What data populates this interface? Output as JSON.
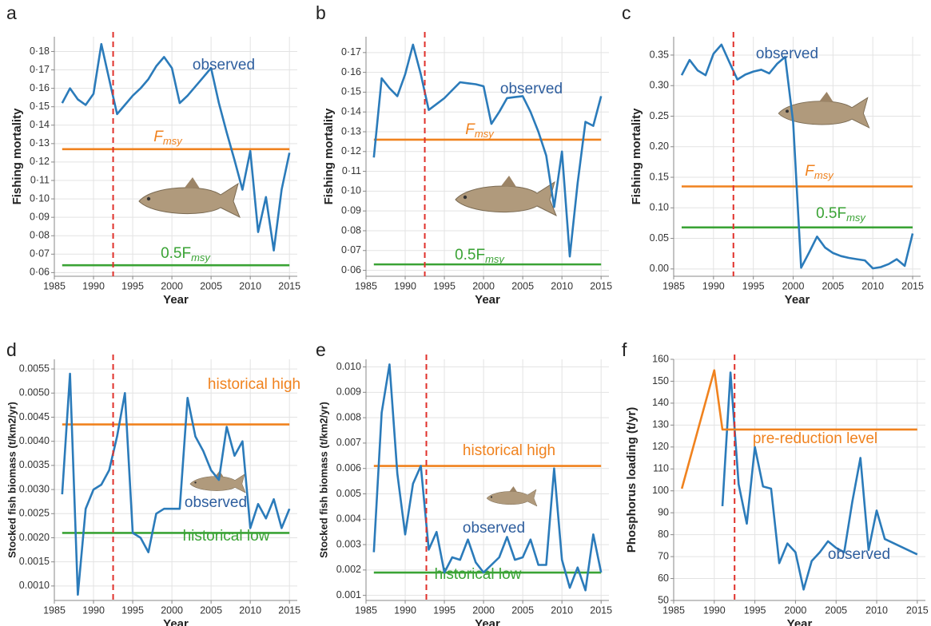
{
  "chart_data": [
    {
      "type": "line",
      "panel": "a",
      "xlabel": "Year",
      "ylabel": "Fishing mortality",
      "xlim": [
        1985,
        2016
      ],
      "xticks": [
        1985,
        1990,
        1995,
        2000,
        2005,
        2010,
        2015
      ],
      "ylim": [
        0.058,
        0.188
      ],
      "yticks": [
        {
          "value": 0.06,
          "label": "0·06"
        },
        {
          "value": 0.07,
          "label": "0·07"
        },
        {
          "value": 0.08,
          "label": "0·08"
        },
        {
          "value": 0.09,
          "label": "0·09"
        },
        {
          "value": 0.1,
          "label": "0·10"
        },
        {
          "value": 0.11,
          "label": "0·11"
        },
        {
          "value": 0.12,
          "label": "0·12"
        },
        {
          "value": 0.13,
          "label": "0·13"
        },
        {
          "value": 0.14,
          "label": "0·14"
        },
        {
          "value": 0.15,
          "label": "0·15"
        },
        {
          "value": 0.16,
          "label": "0·16"
        },
        {
          "value": 0.17,
          "label": "0·17"
        },
        {
          "value": 0.18,
          "label": "0·18"
        }
      ],
      "grid": true,
      "vline_x": 1992.5,
      "vline_color": "#e0302a",
      "series": [
        {
          "name": "observed",
          "color": "#2b7bba",
          "x": [
            1986,
            1987,
            1988,
            1989,
            1990,
            1991,
            1992,
            1993,
            1994,
            1995,
            1996,
            1997,
            1998,
            1999,
            2000,
            2001,
            2002,
            2003,
            2004,
            2005,
            2006,
            2007,
            2008,
            2009,
            2010,
            2011,
            2012,
            2013,
            2014,
            2015
          ],
          "values": [
            0.152,
            0.16,
            0.154,
            0.151,
            0.157,
            0.184,
            0.165,
            0.146,
            0.151,
            0.156,
            0.16,
            0.165,
            0.172,
            0.177,
            0.171,
            0.152,
            0.156,
            0.161,
            0.166,
            0.171,
            0.152,
            0.136,
            0.121,
            0.105,
            0.126,
            0.082,
            0.101,
            0.072,
            0.105,
            0.125
          ]
        }
      ],
      "hlines": [
        {
          "label": "F",
          "subscript": "msy",
          "value": 0.127,
          "color": "#f0821e"
        },
        {
          "label": "0.5F",
          "subscript": "msy",
          "value": 0.064,
          "color": "#3aa335"
        }
      ]
    },
    {
      "type": "line",
      "panel": "b",
      "xlabel": "Year",
      "ylabel": "Fishing mortality",
      "xlim": [
        1985,
        2016
      ],
      "xticks": [
        1985,
        1990,
        1995,
        2000,
        2005,
        2010,
        2015
      ],
      "ylim": [
        0.057,
        0.178
      ],
      "yticks": [
        {
          "value": 0.06,
          "label": "0·06"
        },
        {
          "value": 0.07,
          "label": "0·07"
        },
        {
          "value": 0.08,
          "label": "0·08"
        },
        {
          "value": 0.09,
          "label": "0·09"
        },
        {
          "value": 0.1,
          "label": "0·10"
        },
        {
          "value": 0.11,
          "label": "0·11"
        },
        {
          "value": 0.12,
          "label": "0·12"
        },
        {
          "value": 0.13,
          "label": "0·13"
        },
        {
          "value": 0.14,
          "label": "0·14"
        },
        {
          "value": 0.15,
          "label": "0·15"
        },
        {
          "value": 0.16,
          "label": "0·16"
        },
        {
          "value": 0.17,
          "label": "0·17"
        }
      ],
      "grid": true,
      "vline_x": 1992.5,
      "vline_color": "#e0302a",
      "series": [
        {
          "name": "observed",
          "color": "#2b7bba",
          "x": [
            1986,
            1987,
            1988,
            1989,
            1990,
            1991,
            1992,
            1993,
            1994,
            1995,
            1996,
            1997,
            1998,
            1999,
            2000,
            2001,
            2002,
            2003,
            2004,
            2005,
            2006,
            2007,
            2008,
            2009,
            2010,
            2011,
            2012,
            2013,
            2014,
            2015
          ],
          "values": [
            0.117,
            0.157,
            0.152,
            0.148,
            0.159,
            0.174,
            0.159,
            0.141,
            0.144,
            0.147,
            0.151,
            0.155,
            0.1545,
            0.154,
            0.153,
            0.134,
            0.14,
            0.147,
            0.1475,
            0.148,
            0.14,
            0.13,
            0.118,
            0.092,
            0.12,
            0.067,
            0.104,
            0.135,
            0.133,
            0.148
          ]
        }
      ],
      "hlines": [
        {
          "label": "F",
          "subscript": "msy",
          "value": 0.126,
          "color": "#f0821e"
        },
        {
          "label": "0.5F",
          "subscript": "msy",
          "value": 0.063,
          "color": "#3aa335"
        }
      ]
    },
    {
      "type": "line",
      "panel": "c",
      "xlabel": "Year",
      "ylabel": "Fishing mortality",
      "xlim": [
        1985,
        2016
      ],
      "xticks": [
        1985,
        1990,
        1995,
        2000,
        2005,
        2010,
        2015
      ],
      "ylim": [
        -0.012,
        0.38
      ],
      "yticks": [
        {
          "value": 0,
          "label": "0.00"
        },
        {
          "value": 0.05,
          "label": "0.05"
        },
        {
          "value": 0.1,
          "label": "0.10"
        },
        {
          "value": 0.15,
          "label": "0.15"
        },
        {
          "value": 0.2,
          "label": "0.20"
        },
        {
          "value": 0.25,
          "label": "0.25"
        },
        {
          "value": 0.3,
          "label": "0.30"
        },
        {
          "value": 0.35,
          "label": "0.35"
        }
      ],
      "grid": true,
      "vline_x": 1992.5,
      "vline_color": "#e0302a",
      "series": [
        {
          "name": "observed",
          "color": "#2b7bba",
          "x": [
            1986,
            1987,
            1988,
            1989,
            1990,
            1991,
            1992,
            1993,
            1994,
            1995,
            1996,
            1997,
            1998,
            1999,
            2000,
            2001,
            2002,
            2003,
            2004,
            2005,
            2006,
            2007,
            2008,
            2009,
            2010,
            2011,
            2012,
            2013,
            2014,
            2015
          ],
          "values": [
            0.317,
            0.342,
            0.325,
            0.317,
            0.352,
            0.367,
            0.338,
            0.31,
            0.318,
            0.323,
            0.326,
            0.32,
            0.336,
            0.347,
            0.24,
            0.002,
            0.027,
            0.053,
            0.035,
            0.026,
            0.021,
            0.018,
            0.016,
            0.014,
            0.001,
            0.003,
            0.008,
            0.016,
            0.005,
            0.058
          ]
        }
      ],
      "hlines": [
        {
          "label": "F",
          "subscript": "msy",
          "value": 0.135,
          "color": "#f0821e"
        },
        {
          "label": "0.5F",
          "subscript": "msy",
          "value": 0.068,
          "color": "#3aa335"
        }
      ]
    },
    {
      "type": "line",
      "panel": "d",
      "xlabel": "Year",
      "ylabel": "Stocked fish biomass (t/km2/yr)",
      "xlim": [
        1985,
        2016
      ],
      "xticks": [
        1985,
        1990,
        1995,
        2000,
        2005,
        2010,
        2015
      ],
      "ylim": [
        0.0007,
        0.0057
      ],
      "yticks": [
        {
          "value": 0.001,
          "label": "0.0010"
        },
        {
          "value": 0.0015,
          "label": "0.0015"
        },
        {
          "value": 0.002,
          "label": "0.0020"
        },
        {
          "value": 0.0025,
          "label": "0.0025"
        },
        {
          "value": 0.003,
          "label": "0.0030"
        },
        {
          "value": 0.0035,
          "label": "0.0035"
        },
        {
          "value": 0.004,
          "label": "0.0040"
        },
        {
          "value": 0.0045,
          "label": "0.0045"
        },
        {
          "value": 0.005,
          "label": "0.0050"
        },
        {
          "value": 0.0055,
          "label": "0.0055"
        }
      ],
      "grid": true,
      "vline_x": 1992.5,
      "vline_color": "#e0302a",
      "series": [
        {
          "name": "observed",
          "color": "#2b7bba",
          "x": [
            1986,
            1987,
            1988,
            1989,
            1990,
            1991,
            1992,
            1993,
            1994,
            1995,
            1996,
            1997,
            1998,
            1999,
            2000,
            2001,
            2002,
            2003,
            2004,
            2005,
            2006,
            2007,
            2008,
            2009,
            2010,
            2011,
            2012,
            2013,
            2014,
            2015
          ],
          "values": [
            0.0029,
            0.0054,
            0.00082,
            0.0026,
            0.003,
            0.0031,
            0.0034,
            0.0041,
            0.005,
            0.0021,
            0.002,
            0.0017,
            0.0025,
            0.0026,
            0.0026,
            0.0026,
            0.0049,
            0.0041,
            0.0038,
            0.0034,
            0.0032,
            0.0043,
            0.0037,
            0.004,
            0.0022,
            0.0027,
            0.0024,
            0.0028,
            0.0022,
            0.0026
          ]
        }
      ],
      "hlines": [
        {
          "label": "historical high",
          "value": 0.00435,
          "color": "#f0821e"
        },
        {
          "label": "historical low",
          "value": 0.0021,
          "color": "#3aa335"
        }
      ]
    },
    {
      "type": "line",
      "panel": "e",
      "xlabel": "Year",
      "ylabel": "Stocked fish biomass (t/km2/yr)",
      "xlim": [
        1985,
        2016
      ],
      "xticks": [
        1985,
        1990,
        1995,
        2000,
        2005,
        2010,
        2015
      ],
      "ylim": [
        0.0008,
        0.0103
      ],
      "yticks": [
        0.001,
        0.002,
        0.003,
        0.004,
        0.005,
        0.006,
        0.007,
        0.008,
        0.009,
        {
          "value": 0.01,
          "label": "0.010"
        }
      ],
      "grid": true,
      "vline_x": 1992.7,
      "vline_color": "#e0302a",
      "series": [
        {
          "name": "observed",
          "color": "#2b7bba",
          "x": [
            1986,
            1987,
            1988,
            1989,
            1990,
            1991,
            1992,
            1993,
            1994,
            1995,
            1996,
            1997,
            1998,
            1999,
            2000,
            2001,
            2002,
            2003,
            2004,
            2005,
            2006,
            2007,
            2008,
            2009,
            2010,
            2011,
            2012,
            2013,
            2014,
            2015
          ],
          "values": [
            0.0027,
            0.0082,
            0.0101,
            0.0058,
            0.0034,
            0.0054,
            0.0061,
            0.0028,
            0.0035,
            0.0019,
            0.0025,
            0.0024,
            0.0032,
            0.0023,
            0.0019,
            0.0022,
            0.0025,
            0.0033,
            0.0024,
            0.0025,
            0.0032,
            0.0022,
            0.0022,
            0.006,
            0.0024,
            0.0013,
            0.0021,
            0.0012,
            0.0034,
            0.0019
          ]
        }
      ],
      "hlines": [
        {
          "label": "historical high",
          "value": 0.0061,
          "color": "#f0821e"
        },
        {
          "label": "historical low",
          "value": 0.0019,
          "color": "#3aa335"
        }
      ]
    },
    {
      "type": "line",
      "panel": "f",
      "xlabel": "Year",
      "ylabel": "Phosphorus loading (t/yr)",
      "xlim": [
        1985,
        2016
      ],
      "xticks": [
        1985,
        1990,
        1995,
        2000,
        2005,
        2010,
        2015
      ],
      "ylim": [
        50,
        160
      ],
      "yticks": [
        50,
        60,
        70,
        80,
        90,
        100,
        110,
        120,
        130,
        140,
        150,
        160
      ],
      "grid": true,
      "vline_x": 1992.5,
      "vline_color": "#e0302a",
      "series": [
        {
          "name": "observed",
          "color": "#2b7bba",
          "x": [
            1991,
            1992,
            1993,
            1994,
            1995,
            1996,
            1997,
            1998,
            1999,
            2000,
            2001,
            2002,
            2003,
            2004,
            2005,
            2006,
            2007,
            2008,
            2009,
            2010,
            2011,
            2015
          ],
          "values": [
            93,
            154,
            103,
            85,
            120,
            102,
            101,
            67,
            76,
            72,
            55,
            68,
            72,
            77,
            74,
            72,
            95,
            115,
            73,
            91,
            78,
            71
          ]
        },
        {
          "name": "pre-reduction level",
          "color": "#f0821e",
          "x": [
            1986,
            1990,
            1991,
            2015
          ],
          "values": [
            101,
            155,
            128,
            128
          ]
        }
      ],
      "hlines": []
    }
  ]
}
